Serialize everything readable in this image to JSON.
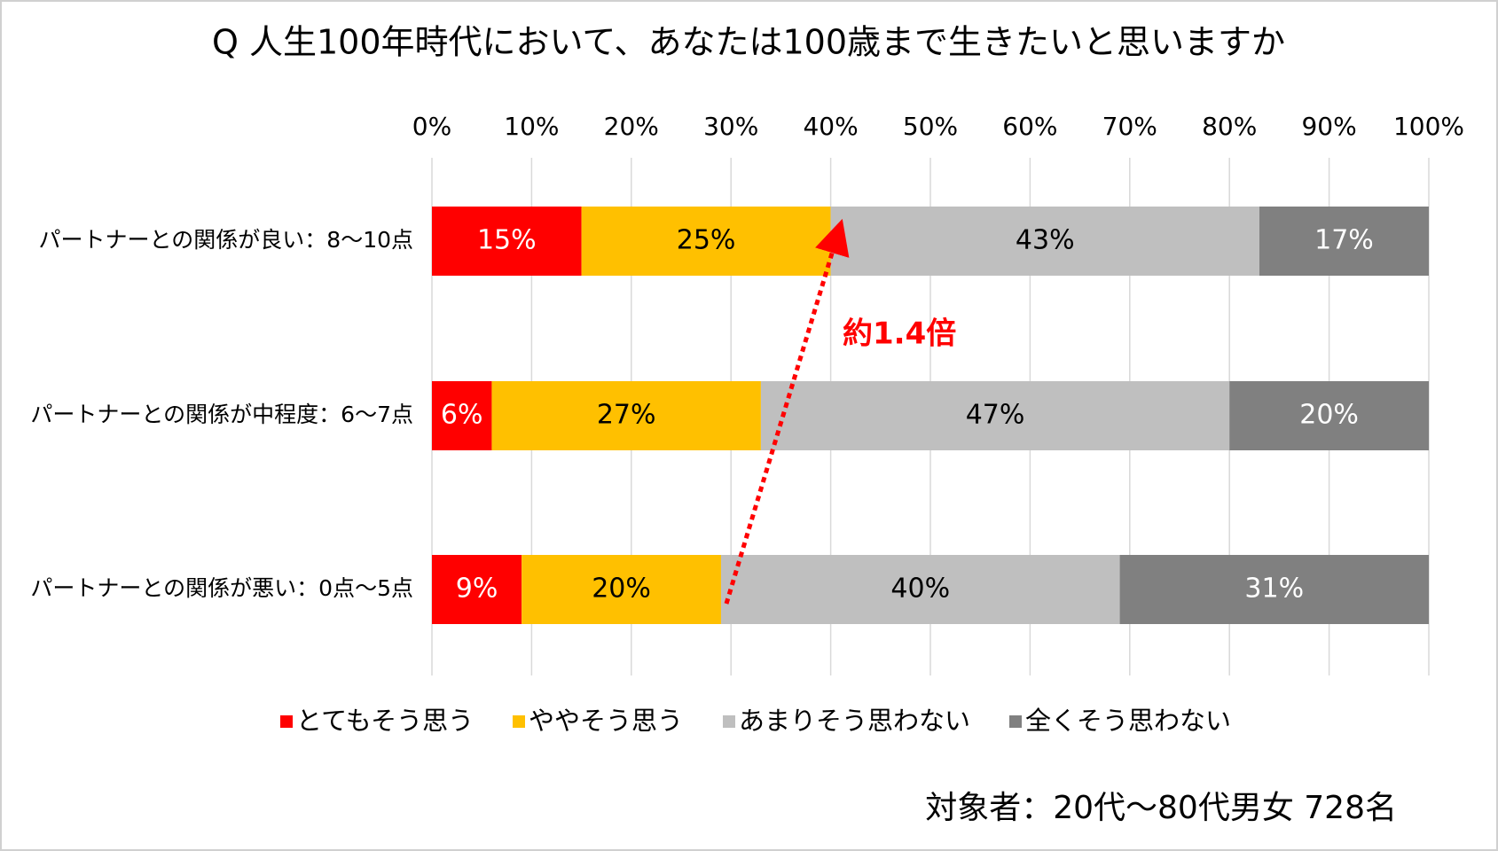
{
  "chart_data": {
    "type": "stacked-bar-horizontal",
    "title": "Q 人生100年時代において、あなたは100歳まで生きたいと思いますか",
    "categories": [
      "パートナーとの関係が良い：8～10点",
      "パートナーとの関係が中程度：6～7点",
      "パートナーとの関係が悪い：0点～5点"
    ],
    "series": [
      {
        "name": "とてもそう思う",
        "color": "#ff0000",
        "values": [
          15,
          6,
          9
        ],
        "value_labels": [
          "15%",
          "6%",
          "9%"
        ]
      },
      {
        "name": "ややそう思う",
        "color": "#ffc000",
        "values": [
          25,
          27,
          20
        ],
        "value_labels": [
          "25%",
          "27%",
          "20%"
        ]
      },
      {
        "name": "あまりそう思わない",
        "color": "#bfbfbf",
        "values": [
          43,
          47,
          40
        ],
        "value_labels": [
          "43%",
          "47%",
          "40%"
        ]
      },
      {
        "name": "全くそう思わない",
        "color": "#808080",
        "values": [
          17,
          20,
          31
        ],
        "value_labels": [
          "17%",
          "20%",
          "31%"
        ]
      }
    ],
    "xlim": [
      0,
      100
    ],
    "xticks": [
      {
        "value": 0,
        "label": "0%"
      },
      {
        "value": 10,
        "label": "10%"
      },
      {
        "value": 20,
        "label": "20%"
      },
      {
        "value": 30,
        "label": "30%"
      },
      {
        "value": 40,
        "label": "40%"
      },
      {
        "value": 50,
        "label": "50%"
      },
      {
        "value": 60,
        "label": "60%"
      },
      {
        "value": 70,
        "label": "70%"
      },
      {
        "value": 80,
        "label": "80%"
      },
      {
        "value": 90,
        "label": "90%"
      },
      {
        "value": 100,
        "label": "100%"
      }
    ],
    "grid": true,
    "annotation": "約1.4倍",
    "note": "対象者：20代～80代男女 728名"
  }
}
